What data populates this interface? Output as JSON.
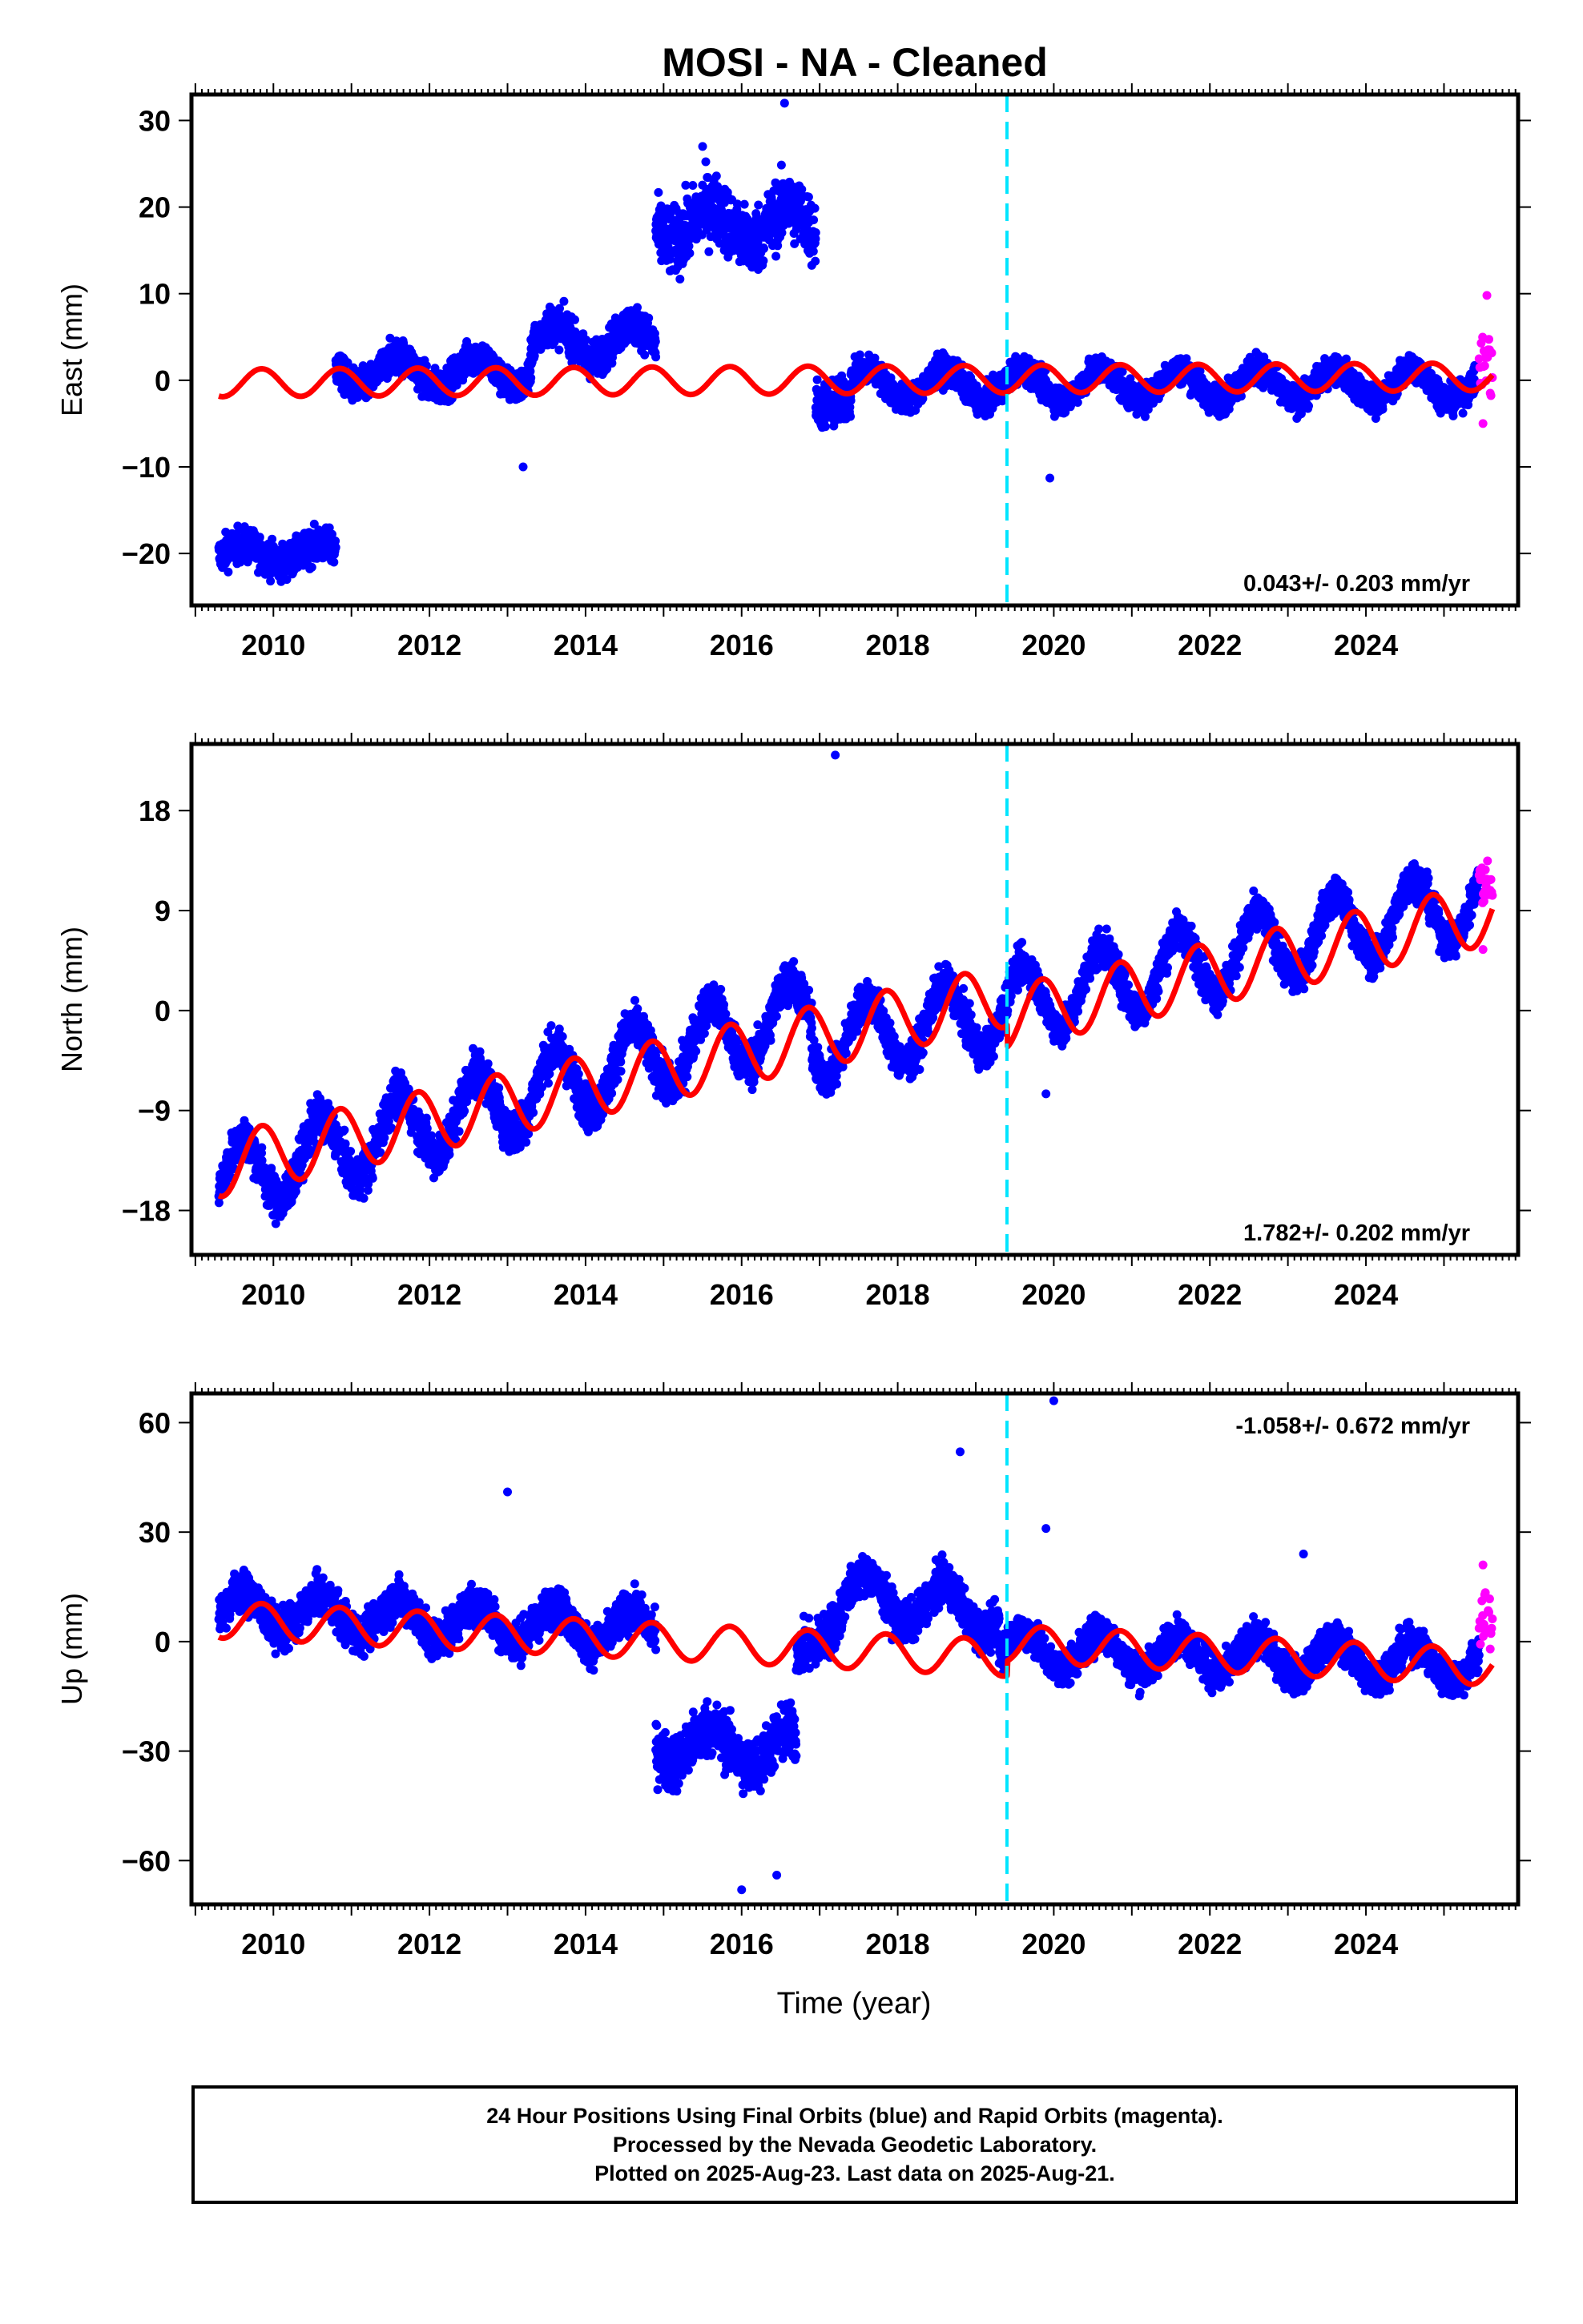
{
  "title": "MOSI  - NA - Cleaned",
  "colors": {
    "final_orbits": "#0000ff",
    "rapid_orbits": "#ff00ff",
    "model_fit": "#ff0000",
    "equipment_change": "#00e5ff"
  },
  "chart_data": [
    {
      "type": "scatter",
      "ylabel": "East (mm)",
      "ylim": [
        -26,
        33
      ],
      "yticks": [
        -20,
        -10,
        0,
        10,
        20,
        30
      ],
      "xlim": [
        2008.95,
        2025.95
      ],
      "xticks": [
        2010,
        2012,
        2014,
        2016,
        2018,
        2020,
        2022,
        2024
      ],
      "rate": "0.043+/- 0.203 mm/yr",
      "series": [
        {
          "name": "Final Orbits",
          "color": "blue",
          "segments": [
            {
              "x0": 2009.3,
              "x1": 2010.8,
              "mean": -20.0,
              "noise": 1.8,
              "amp": 1.0
            },
            {
              "x0": 2010.8,
              "x1": 2013.3,
              "mean": 1.0,
              "noise": 1.8,
              "amp": 1.8
            },
            {
              "x0": 2013.3,
              "x1": 2014.9,
              "mean": 4.5,
              "noise": 2.0,
              "amp": 2.0
            },
            {
              "x0": 2014.9,
              "x1": 2016.95,
              "mean": 18.0,
              "noise": 3.5,
              "amp": 2.0
            },
            {
              "x0": 2016.95,
              "x1": 2017.4,
              "mean": -2.0,
              "noise": 2.5,
              "amp": 1.0
            },
            {
              "x0": 2017.4,
              "x1": 2025.4,
              "mean": -0.5,
              "noise": 1.5,
              "amp": 1.8
            }
          ],
          "outliers": [
            [
              2016.55,
              32.0
            ],
            [
              2013.2,
              -10.0
            ],
            [
              2019.95,
              -11.3
            ],
            [
              2015.5,
              27.0
            ]
          ]
        },
        {
          "name": "Rapid Orbits",
          "color": "magenta",
          "segments": [
            {
              "x0": 2025.45,
              "x1": 2025.62,
              "mean": 2.0,
              "noise": 3.5,
              "amp": 0
            }
          ],
          "outliers": [
            [
              2025.55,
              9.8
            ],
            [
              2025.5,
              -5.0
            ]
          ]
        }
      ],
      "model": {
        "x0": 2009.3,
        "x1": 2025.62,
        "rate": 0.043,
        "offset": -0.3,
        "amp": 1.6,
        "phase": 0.6
      },
      "equipment_change_x": 2019.4
    },
    {
      "type": "scatter",
      "ylabel": "North (mm)",
      "ylim": [
        -22,
        24
      ],
      "yticks": [
        -18,
        -9,
        0,
        9,
        18
      ],
      "xlim": [
        2008.95,
        2025.95
      ],
      "xticks": [
        2010,
        2012,
        2014,
        2016,
        2018,
        2020,
        2022,
        2024
      ],
      "rate": "1.782+/- 0.202 mm/yr",
      "series": [
        {
          "name": "Final Orbits",
          "color": "blue",
          "segments": [
            {
              "x0": 2009.3,
              "x1": 2016.9,
              "start": -15.5,
              "end": 0.0,
              "noise": 1.8,
              "amp": 3.2
            },
            {
              "x0": 2016.9,
              "x1": 2019.4,
              "start": -3.0,
              "end": 0.0,
              "noise": 1.6,
              "amp": 3.2
            },
            {
              "x0": 2019.4,
              "x1": 2025.45,
              "start": 0.5,
              "end": 10.0,
              "noise": 1.5,
              "amp": 3.2
            }
          ],
          "outliers": [
            [
              2017.2,
              23.0
            ],
            [
              2019.9,
              -7.5
            ]
          ]
        },
        {
          "name": "Rapid Orbits",
          "color": "magenta",
          "segments": [
            {
              "x0": 2025.45,
              "x1": 2025.62,
              "start": 11.5,
              "end": 11.5,
              "noise": 2.0,
              "amp": 0
            }
          ],
          "outliers": [
            [
              2025.5,
              5.5
            ]
          ]
        }
      ],
      "model": {
        "x0": 2009.3,
        "x1": 2025.62,
        "start": -14.0,
        "end": 10.8,
        "amp": 2.8,
        "phase": 0.6,
        "jump": [
          2019.4,
          -2.0
        ]
      },
      "equipment_change_x": 2019.4
    },
    {
      "type": "scatter",
      "ylabel": "Up (mm)",
      "ylim": [
        -72,
        68
      ],
      "yticks": [
        -60,
        -30,
        0,
        30,
        60
      ],
      "xlim": [
        2008.95,
        2025.95
      ],
      "xticks": [
        2010,
        2012,
        2014,
        2016,
        2018,
        2020,
        2022,
        2024
      ],
      "xlabel": "Time (year)",
      "rate": "-1.058+/- 0.672 mm/yr",
      "series": [
        {
          "name": "Final Orbits",
          "color": "blue",
          "segments": [
            {
              "x0": 2009.3,
              "x1": 2014.9,
              "start": 9.0,
              "end": 3.0,
              "noise": 5.0,
              "amp": 5.0
            },
            {
              "x0": 2014.9,
              "x1": 2016.7,
              "start": -28.0,
              "end": -30.0,
              "noise": 7.0,
              "amp": 5.0
            },
            {
              "x0": 2016.7,
              "x1": 2017.3,
              "start": -5.0,
              "end": 10.0,
              "noise": 6.0,
              "amp": 3.0
            },
            {
              "x0": 2017.3,
              "x1": 2019.3,
              "start": 13.0,
              "end": 8.0,
              "noise": 5.0,
              "amp": 6.0
            },
            {
              "x0": 2019.3,
              "x1": 2025.45,
              "start": -2.0,
              "end": -6.0,
              "noise": 4.5,
              "amp": 5.0
            }
          ],
          "outliers": [
            [
              2020.0,
              66.0
            ],
            [
              2018.8,
              52.0
            ],
            [
              2016.0,
              -68.0
            ],
            [
              2016.45,
              -64.0
            ],
            [
              2013.0,
              41.0
            ],
            [
              2023.2,
              24.0
            ],
            [
              2019.9,
              31.0
            ]
          ]
        },
        {
          "name": "Rapid Orbits",
          "color": "magenta",
          "segments": [
            {
              "x0": 2025.45,
              "x1": 2025.62,
              "start": 5.0,
              "end": 5.0,
              "noise": 7.0,
              "amp": 0
            }
          ],
          "outliers": [
            [
              2025.5,
              21.0
            ]
          ]
        }
      ],
      "model": {
        "x0": 2009.3,
        "x1": 2025.62,
        "start": 6.0,
        "end": -11.0,
        "amp": 5.0,
        "phase": 0.6,
        "jump": [
          2019.4,
          4.0
        ]
      },
      "equipment_change_x": 2019.4
    }
  ],
  "footer": {
    "line1": "24 Hour Positions Using Final Orbits (blue) and Rapid Orbits (magenta).",
    "line2": "Processed by the Nevada Geodetic Laboratory.",
    "line3": "Plotted on 2025-Aug-23. Last data on 2025-Aug-21."
  }
}
